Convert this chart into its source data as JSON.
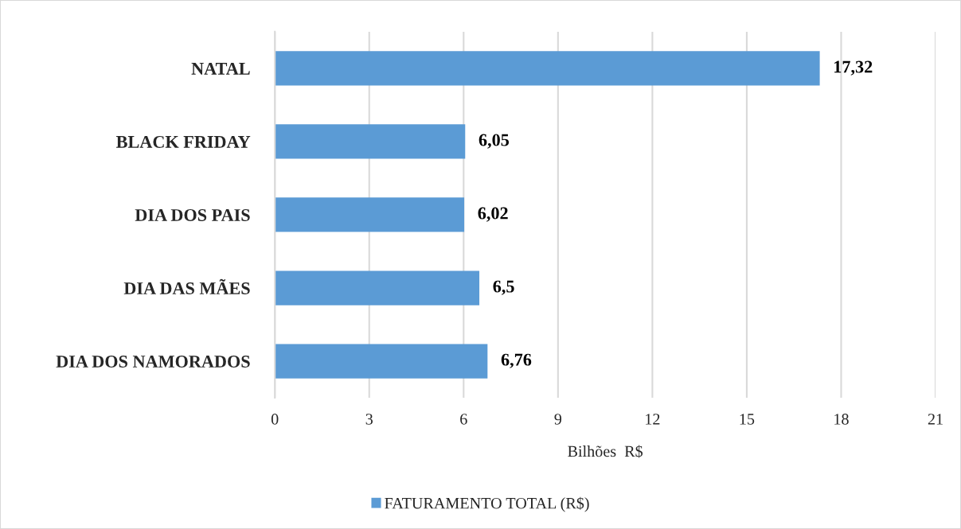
{
  "chart_data": {
    "type": "bar",
    "orientation": "horizontal",
    "categories": [
      "NATAL",
      "BLACK FRIDAY",
      "DIA DOS PAIS",
      "DIA DAS MÃES",
      "DIA DOS NAMORADOS"
    ],
    "series": [
      {
        "name": "FATURAMENTO TOTAL (R$)",
        "color": "#5b9bd5",
        "values": [
          17.32,
          6.05,
          6.02,
          6.5,
          6.76
        ],
        "value_labels": [
          "17,32",
          "6,05",
          "6,02",
          "6,5",
          "6,76"
        ]
      }
    ],
    "xlabel": "Bilhões  R$",
    "xlim": [
      0,
      21
    ],
    "xticks": [
      0,
      3,
      6,
      9,
      12,
      15,
      18,
      21
    ],
    "grid": "x",
    "legend": "bottom"
  }
}
